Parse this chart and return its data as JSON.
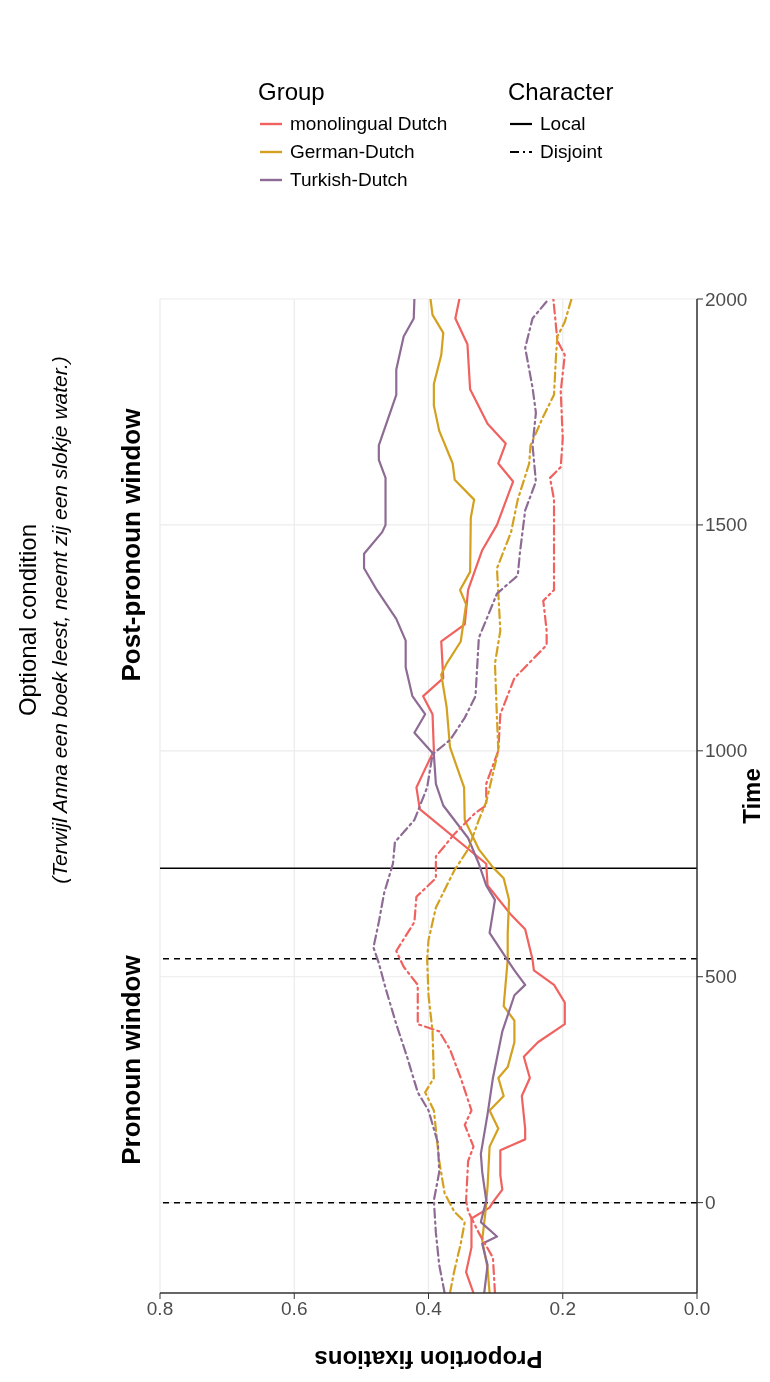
{
  "chart_data": {
    "type": "line",
    "title": "Optional condition",
    "subtitle": "(Terwijl Anna een boek leest, neemt zij een slokje water.)",
    "xlabel": "Proportion fixations",
    "ylabel": "Time",
    "legend_title": "Group",
    "xlim": [
      0.8,
      0
    ],
    "xticks": [
      0.8,
      0.6,
      0.4,
      0.2,
      {
        "value": 0,
        "label": "0.0"
      }
    ],
    "ylim": [
      -200,
      2000
    ],
    "yticks": [
      0,
      500,
      1000,
      1500,
      2000
    ],
    "grid": true,
    "legend": "top",
    "marker": "none",
    "ref_lines": [
      {
        "axis": "y",
        "value": 0,
        "color": "#000000",
        "line_style": "dashed"
      },
      {
        "axis": "y",
        "value": 540,
        "color": "#000000",
        "line_style": "dashed"
      },
      {
        "axis": "y",
        "value": 740,
        "color": "#000000",
        "line_style": "solid"
      }
    ],
    "annotations": [
      "Pronoun window",
      "Post-pronoun window",
      "Character",
      "Local",
      "Disjoint"
    ],
    "series": [
      {
        "name": "monolingual Dutch",
        "color": "#f0625f",
        "line_style": "solid",
        "values": [
          -200,
          -154,
          -99,
          -35,
          -11,
          1,
          29,
          61,
          116,
          140,
          164,
          236,
          276,
          323,
          355,
          395,
          443,
          482,
          514,
          538,
          605,
          637,
          702,
          750,
          871,
          919,
          960,
          1000,
          1081,
          1121,
          1161,
          1242,
          1280,
          1356,
          1444,
          1500,
          1596,
          1636,
          1680,
          1724,
          1800,
          1900,
          1957,
          2000
        ],
        "x": [
          0.333,
          0.344,
          0.336,
          0.336,
          0.309,
          0.304,
          0.29,
          0.293,
          0.293,
          0.256,
          0.256,
          0.261,
          0.249,
          0.258,
          0.237,
          0.197,
          0.197,
          0.213,
          0.243,
          0.245,
          0.256,
          0.277,
          0.312,
          0.314,
          0.413,
          0.418,
          0.405,
          0.392,
          0.394,
          0.408,
          0.378,
          0.381,
          0.346,
          0.341,
          0.32,
          0.298,
          0.274,
          0.296,
          0.285,
          0.312,
          0.338,
          0.342,
          0.36,
          0.354
        ]
      },
      {
        "name": "German-Dutch",
        "color": "#d4a020",
        "line_style": "solid",
        "values": [
          -200,
          -146,
          -83,
          -19,
          36,
          124,
          164,
          204,
          236,
          276,
          300,
          355,
          403,
          435,
          538,
          597,
          670,
          718,
          742,
          782,
          847,
          919,
          1008,
          1097,
          1169,
          1193,
          1242,
          1324,
          1356,
          1396,
          1516,
          1556,
          1600,
          1636,
          1708,
          1764,
          1812,
          1876,
          1925,
          1965,
          2000
        ],
        "x": [
          0.309,
          0.312,
          0.32,
          0.315,
          0.312,
          0.309,
          0.296,
          0.309,
          0.288,
          0.296,
          0.282,
          0.272,
          0.272,
          0.288,
          0.282,
          0.282,
          0.28,
          0.288,
          0.304,
          0.325,
          0.346,
          0.347,
          0.368,
          0.373,
          0.381,
          0.373,
          0.352,
          0.344,
          0.353,
          0.338,
          0.337,
          0.332,
          0.361,
          0.364,
          0.384,
          0.392,
          0.392,
          0.381,
          0.378,
          0.394,
          0.397
        ]
      },
      {
        "name": "Turkish-Dutch",
        "color": "#8e6b94",
        "line_style": "solid",
        "values": [
          -200,
          -138,
          -91,
          -75,
          -43,
          5,
          68,
          108,
          196,
          276,
          379,
          459,
          482,
          514,
          597,
          670,
          702,
          750,
          807,
          879,
          927,
          992,
          1040,
          1081,
          1121,
          1185,
          1244,
          1292,
          1356,
          1404,
          1436,
          1484,
          1500,
          1604,
          1644,
          1676,
          1788,
          1844,
          1917,
          1957,
          2000
        ],
        "x": [
          0.317,
          0.312,
          0.32,
          0.298,
          0.322,
          0.314,
          0.32,
          0.322,
          0.312,
          0.304,
          0.29,
          0.272,
          0.256,
          0.272,
          0.309,
          0.301,
          0.314,
          0.325,
          0.341,
          0.378,
          0.389,
          0.392,
          0.421,
          0.405,
          0.424,
          0.434,
          0.434,
          0.448,
          0.477,
          0.496,
          0.496,
          0.469,
          0.464,
          0.464,
          0.474,
          0.474,
          0.448,
          0.448,
          0.437,
          0.422,
          0.421
        ]
      },
      {
        "color": "#f0625f",
        "line_style": "dashed",
        "values": [
          -200,
          -122,
          -67,
          -19,
          5,
          92,
          124,
          172,
          204,
          276,
          339,
          379,
          395,
          482,
          522,
          557,
          621,
          677,
          718,
          766,
          815,
          863,
          879,
          927,
          1000,
          1081,
          1161,
          1234,
          1266,
          1332,
          1356,
          1556,
          1604,
          1628,
          1692,
          1796,
          1876,
          1908,
          2000
        ],
        "x": [
          0.301,
          0.304,
          0.325,
          0.341,
          0.344,
          0.341,
          0.333,
          0.346,
          0.336,
          0.352,
          0.368,
          0.384,
          0.416,
          0.416,
          0.437,
          0.448,
          0.421,
          0.418,
          0.389,
          0.389,
          0.362,
          0.33,
          0.314,
          0.314,
          0.296,
          0.293,
          0.272,
          0.224,
          0.224,
          0.229,
          0.213,
          0.213,
          0.219,
          0.203,
          0.2,
          0.203,
          0.197,
          0.208,
          0.214
        ]
      },
      {
        "color": "#d4a020",
        "line_style": "dashed",
        "values": [
          -200,
          -154,
          -91,
          -43,
          -19,
          21,
          92,
          204,
          244,
          276,
          379,
          459,
          538,
          581,
          653,
          734,
          782,
          847,
          887,
          1000,
          1073,
          1193,
          1266,
          1404,
          1484,
          1556,
          1636,
          1676,
          1740,
          1788,
          1876,
          1917,
          1949,
          2000
        ],
        "x": [
          0.368,
          0.362,
          0.352,
          0.346,
          0.362,
          0.376,
          0.384,
          0.392,
          0.405,
          0.392,
          0.394,
          0.4,
          0.402,
          0.4,
          0.389,
          0.362,
          0.341,
          0.325,
          0.314,
          0.296,
          0.298,
          0.301,
          0.293,
          0.298,
          0.277,
          0.267,
          0.25,
          0.248,
          0.229,
          0.213,
          0.21,
          0.208,
          0.197,
          0.187
        ]
      },
      {
        "color": "#8e6b94",
        "line_style": "dashed",
        "values": [
          -200,
          -138,
          -67,
          5,
          68,
          132,
          204,
          244,
          323,
          395,
          475,
          530,
          565,
          621,
          686,
          750,
          798,
          847,
          919,
          992,
          1024,
          1073,
          1121,
          1250,
          1348,
          1388,
          1436,
          1532,
          1596,
          1676,
          1748,
          1804,
          1892,
          1957,
          2000
        ],
        "x": [
          0.376,
          0.384,
          0.389,
          0.392,
          0.384,
          0.386,
          0.4,
          0.416,
          0.432,
          0.448,
          0.464,
          0.474,
          0.482,
          0.474,
          0.466,
          0.453,
          0.45,
          0.421,
          0.402,
          0.394,
          0.368,
          0.346,
          0.33,
          0.325,
          0.298,
          0.267,
          0.264,
          0.256,
          0.24,
          0.245,
          0.24,
          0.245,
          0.256,
          0.245,
          0.221
        ]
      }
    ]
  }
}
